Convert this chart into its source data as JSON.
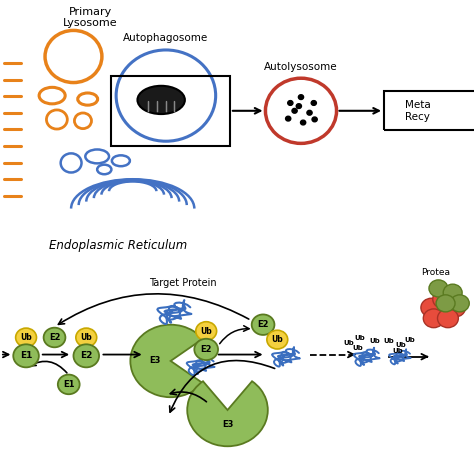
{
  "bg_color": "#ffffff",
  "top": {
    "lysosome_color": "#E8821A",
    "autophagosome_color": "#4472C4",
    "autolysosome_color": "#C0392B",
    "mito_color": "#1a1a1a",
    "text_primary_lysosome": "Primary\nLysosome",
    "text_autophagosome": "Autophagosome",
    "text_autolysosome": "Autolysosome",
    "text_er": "Endoplasmic Reticulum",
    "text_meta": "Meta\nRecy"
  },
  "bottom": {
    "ub_color": "#F4D03F",
    "ub_edge": "#C8A800",
    "e_color": "#8FBC5A",
    "e_edge": "#5A7A20",
    "protein_color": "#3A6EBF",
    "proteasome_red": "#E74C3C",
    "proteasome_red_edge": "#A93226",
    "proteasome_green": "#7D9B45",
    "proteasome_green_edge": "#5A7A20",
    "text_target": "Target Protein",
    "text_protea": "Protea"
  }
}
